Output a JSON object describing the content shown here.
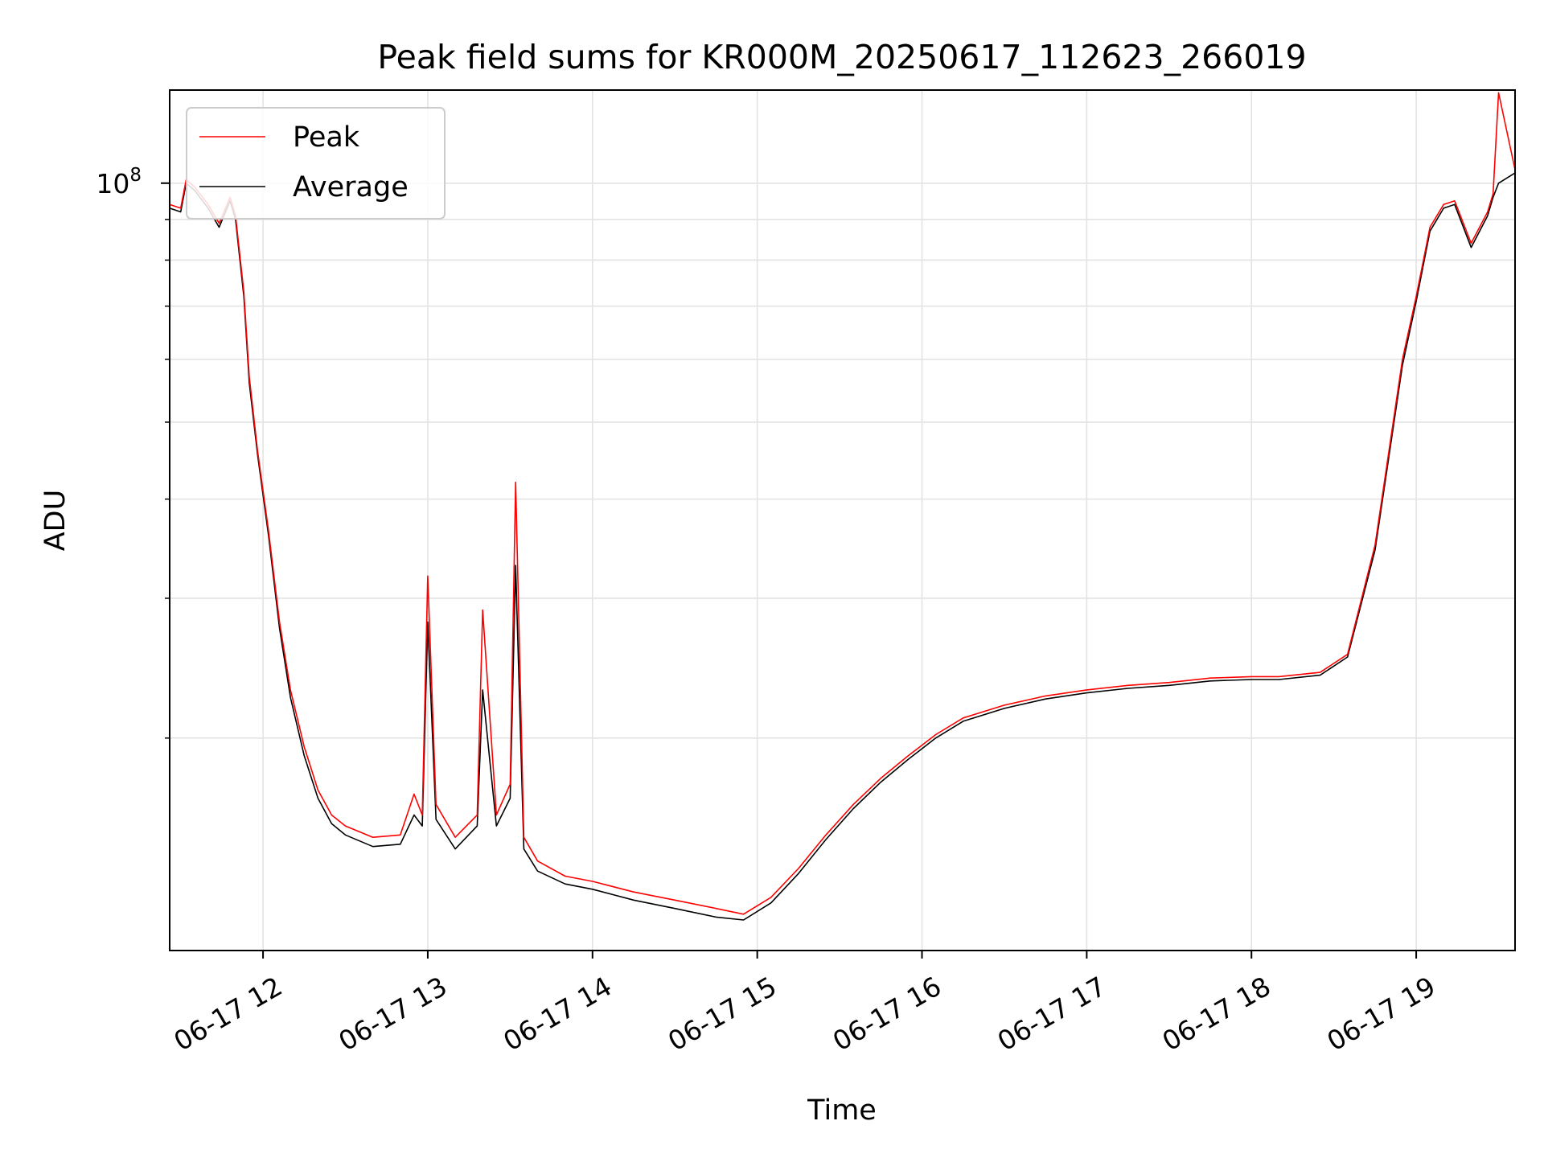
{
  "chart_data": {
    "type": "line",
    "title": "Peak field sums for KR000M_20250617_112623_266019",
    "xlabel": "Time",
    "ylabel": "ADU",
    "x_ticks": [
      "06-17 12",
      "06-17 13",
      "06-17 14",
      "06-17 15",
      "06-17 16",
      "06-17 17",
      "06-17 18",
      "06-17 19"
    ],
    "x_tick_hours": [
      12,
      13,
      14,
      15,
      16,
      17,
      18,
      19
    ],
    "xlim": [
      "06-17 11:26",
      "06-17 19:36"
    ],
    "y_tick_label_base": "10",
    "y_tick_label_exp": "8",
    "y_scale": "log",
    "ylim": [
      10800000,
      131000000
    ],
    "grid": true,
    "legend": {
      "position": "upper left",
      "entries": [
        "Peak",
        "Average"
      ]
    },
    "colors": {
      "Peak": "#ff0000",
      "Average": "#000000"
    },
    "series": [
      {
        "name": "Peak",
        "x": [
          "11:26",
          "11:30",
          "11:32",
          "11:35",
          "11:40",
          "11:44",
          "11:48",
          "11:50",
          "11:53",
          "11:55",
          "11:58",
          "12:02",
          "12:06",
          "12:10",
          "12:15",
          "12:20",
          "12:25",
          "12:30",
          "12:40",
          "12:50",
          "12:55",
          "12:58",
          "13:00",
          "13:03",
          "13:10",
          "13:18",
          "13:20",
          "13:25",
          "13:30",
          "13:32",
          "13:35",
          "13:40",
          "13:50",
          "14:00",
          "14:15",
          "14:30",
          "14:45",
          "14:55",
          "15:05",
          "15:15",
          "15:25",
          "15:35",
          "15:45",
          "15:55",
          "16:05",
          "16:15",
          "16:30",
          "16:45",
          "17:00",
          "17:15",
          "17:30",
          "17:45",
          "18:00",
          "18:10",
          "18:25",
          "18:35",
          "18:45",
          "18:55",
          "19:00",
          "19:05",
          "19:10",
          "19:14",
          "19:20",
          "19:26",
          "19:28",
          "19:30",
          "19:36"
        ],
        "y": [
          94000000,
          93000000,
          101000000,
          99000000,
          94000000,
          89000000,
          96000000,
          91000000,
          73000000,
          57000000,
          46000000,
          36500000,
          28000000,
          23000000,
          19500000,
          17200000,
          16000000,
          15500000,
          15000000,
          15100000,
          17000000,
          16000000,
          32000000,
          16500000,
          15000000,
          16000000,
          29000000,
          16000000,
          17500000,
          42000000,
          15000000,
          14000000,
          13400000,
          13200000,
          12800000,
          12500000,
          12200000,
          12000000,
          12600000,
          13700000,
          15100000,
          16500000,
          17800000,
          19000000,
          20200000,
          21200000,
          22000000,
          22600000,
          23000000,
          23300000,
          23500000,
          23800000,
          23900000,
          23900000,
          24200000,
          25500000,
          35000000,
          60000000,
          72000000,
          88000000,
          94000000,
          95000000,
          84000000,
          92000000,
          97000000,
          130000000,
          104000000
        ]
      },
      {
        "name": "Average",
        "x": [
          "11:26",
          "11:30",
          "11:32",
          "11:35",
          "11:40",
          "11:44",
          "11:48",
          "11:50",
          "11:53",
          "11:55",
          "11:58",
          "12:02",
          "12:06",
          "12:10",
          "12:15",
          "12:20",
          "12:25",
          "12:30",
          "12:40",
          "12:50",
          "12:55",
          "12:58",
          "13:00",
          "13:03",
          "13:10",
          "13:18",
          "13:20",
          "13:25",
          "13:30",
          "13:32",
          "13:35",
          "13:40",
          "13:50",
          "14:00",
          "14:15",
          "14:30",
          "14:45",
          "14:55",
          "15:05",
          "15:15",
          "15:25",
          "15:35",
          "15:45",
          "15:55",
          "16:05",
          "16:15",
          "16:30",
          "16:45",
          "17:00",
          "17:15",
          "17:30",
          "17:45",
          "18:00",
          "18:10",
          "18:25",
          "18:35",
          "18:45",
          "18:55",
          "19:00",
          "19:05",
          "19:10",
          "19:14",
          "19:20",
          "19:26",
          "19:28",
          "19:30",
          "19:36"
        ],
        "y": [
          93000000,
          92000000,
          100000000,
          98000000,
          93000000,
          88000000,
          95000000,
          90000000,
          72000000,
          56000000,
          45500000,
          36000000,
          27500000,
          22500000,
          19000000,
          16800000,
          15600000,
          15100000,
          14600000,
          14700000,
          16000000,
          15500000,
          28000000,
          15800000,
          14500000,
          15500000,
          23000000,
          15500000,
          16800000,
          33000000,
          14500000,
          13600000,
          13100000,
          12900000,
          12500000,
          12200000,
          11900000,
          11800000,
          12400000,
          13500000,
          14900000,
          16300000,
          17600000,
          18800000,
          20000000,
          21000000,
          21800000,
          22400000,
          22800000,
          23100000,
          23300000,
          23600000,
          23700000,
          23700000,
          24000000,
          25300000,
          34500000,
          59000000,
          71000000,
          87000000,
          93000000,
          94000000,
          83000000,
          91000000,
          96000000,
          100000000,
          103000000
        ]
      }
    ]
  }
}
